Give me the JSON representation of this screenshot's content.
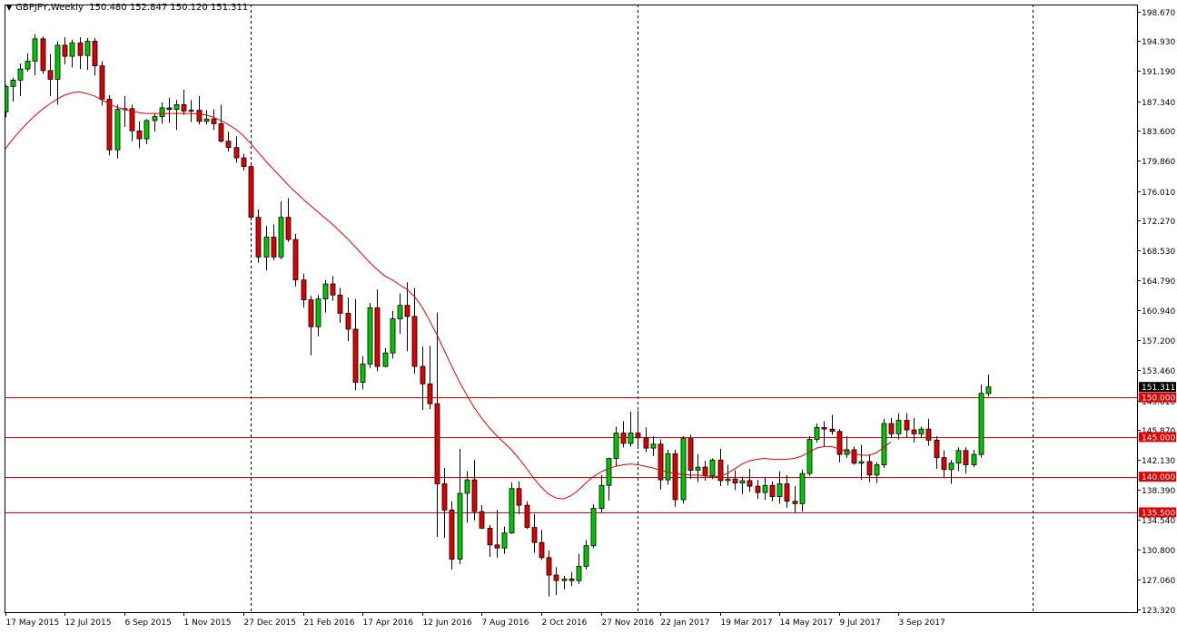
{
  "header": {
    "symbol_timeframe": "GBPJPY,Weekly",
    "ohlc": "150.480 152.847 150.120 151.311"
  },
  "colors": {
    "bull": "#00c800",
    "bear": "#e00000",
    "ma": "#e00000",
    "level_line": "#e00000",
    "price_tag_bg": "#e00000",
    "price_tag_text": "#ffffff",
    "current_tag_bg": "#000000",
    "axis": "#000000",
    "separator": "#000000"
  },
  "chart_data": {
    "type": "candlestick",
    "title": "GBPJPY,Weekly",
    "symbol": "GBPJPY",
    "timeframe": "Weekly",
    "current_price": 151.311,
    "current_price_label": "151.311",
    "ylim": [
      123.32,
      198.67
    ],
    "y_ticks": [
      "198.670",
      "194.930",
      "191.190",
      "187.340",
      "183.600",
      "179.860",
      "176.010",
      "172.270",
      "168.530",
      "164.790",
      "160.940",
      "157.200",
      "153.460",
      "149.610",
      "145.870",
      "142.130",
      "138.390",
      "134.540",
      "130.800",
      "127.060",
      "123.320"
    ],
    "x_labels": [
      {
        "label": "17 May 2015",
        "bar": 0
      },
      {
        "label": "12 Jul 2015",
        "bar": 8
      },
      {
        "label": "6 Sep 2015",
        "bar": 16
      },
      {
        "label": "1 Nov 2015",
        "bar": 24
      },
      {
        "label": "27 Dec 2015",
        "bar": 32
      },
      {
        "label": "21 Feb 2016",
        "bar": 40
      },
      {
        "label": "17 Apr 2016",
        "bar": 48
      },
      {
        "label": "12 Jun 2016",
        "bar": 56
      },
      {
        "label": "7 Aug 2016",
        "bar": 64
      },
      {
        "label": "2 Oct 2016",
        "bar": 72
      },
      {
        "label": "27 Nov 2016",
        "bar": 80
      },
      {
        "label": "22 Jan 2017",
        "bar": 88
      },
      {
        "label": "19 Mar 2017",
        "bar": 96
      },
      {
        "label": "14 May 2017",
        "bar": 104
      },
      {
        "label": "9 Jul 2017",
        "bar": 112
      },
      {
        "label": "3 Sep 2017",
        "bar": 120
      }
    ],
    "period_separators_bar": [
      33,
      85,
      138
    ],
    "horizontal_levels": [
      {
        "value": 150.0,
        "label": "150.000"
      },
      {
        "value": 145.0,
        "label": "145.000"
      },
      {
        "value": 140.0,
        "label": "140.000"
      },
      {
        "value": 135.5,
        "label": "135.500"
      }
    ],
    "ma": {
      "name": "Moving Average",
      "values": [
        181.3,
        182.5,
        183.6,
        184.6,
        185.5,
        186.3,
        187.0,
        187.6,
        188.1,
        188.4,
        188.5,
        188.3,
        188.0,
        187.5,
        187.0,
        186.6,
        186.3,
        186.1,
        185.9,
        185.8,
        185.8,
        185.8,
        185.8,
        185.8,
        185.8,
        185.8,
        185.7,
        185.6,
        185.3,
        184.9,
        184.4,
        183.8,
        183.0,
        182.0,
        180.9,
        179.8,
        178.8,
        177.8,
        176.8,
        175.9,
        175.0,
        174.2,
        173.4,
        172.6,
        171.8,
        170.9,
        170.0,
        169.0,
        168.0,
        167.0,
        166.1,
        165.3,
        164.8,
        164.2,
        163.6,
        162.7,
        161.4,
        159.7,
        157.9,
        155.9,
        153.9,
        152.0,
        150.3,
        148.7,
        147.4,
        146.2,
        145.2,
        144.3,
        143.4,
        142.3,
        141.1,
        139.8,
        138.7,
        137.8,
        137.3,
        137.2,
        137.6,
        138.3,
        139.2,
        140.0,
        140.6,
        141.0,
        141.3,
        141.5,
        141.6,
        141.5,
        141.3,
        141.1,
        140.8,
        140.6,
        140.4,
        140.3,
        140.2,
        140.2,
        140.1,
        140.0,
        140.0,
        140.4,
        141.0,
        141.6,
        142.0,
        142.2,
        142.3,
        142.2,
        142.2,
        142.2,
        142.3,
        142.6,
        143.1,
        143.6,
        143.8,
        143.8,
        143.5,
        143.2,
        142.9,
        142.7,
        142.7,
        143.0,
        143.7,
        144.4
      ]
    },
    "series": [
      {
        "name": "GBPJPY",
        "ohlc": [
          [
            186.0,
            189.4,
            185.3,
            189.2
          ],
          [
            189.2,
            190.3,
            187.3,
            190.0
          ],
          [
            190.0,
            192.1,
            188.0,
            191.4
          ],
          [
            191.4,
            193.4,
            191.1,
            192.4
          ],
          [
            192.4,
            195.8,
            190.6,
            195.2
          ],
          [
            195.2,
            195.5,
            190.8,
            191.2
          ],
          [
            191.2,
            193.3,
            188.0,
            190.1
          ],
          [
            190.1,
            194.9,
            186.9,
            194.4
          ],
          [
            194.4,
            195.4,
            192.0,
            193.0
          ],
          [
            193.0,
            195.1,
            191.6,
            194.7
          ],
          [
            194.7,
            195.4,
            191.4,
            193.1
          ],
          [
            193.1,
            195.3,
            191.3,
            194.9
          ],
          [
            194.9,
            195.3,
            190.6,
            191.8
          ],
          [
            191.8,
            192.4,
            186.8,
            187.6
          ],
          [
            187.6,
            188.1,
            180.5,
            181.2
          ],
          [
            181.2,
            186.9,
            180.1,
            186.3
          ],
          [
            186.3,
            188.0,
            184.1,
            186.4
          ],
          [
            186.4,
            186.9,
            182.3,
            183.6
          ],
          [
            183.6,
            184.8,
            181.4,
            182.6
          ],
          [
            182.6,
            185.1,
            181.9,
            184.9
          ],
          [
            184.9,
            185.8,
            183.5,
            185.4
          ],
          [
            185.4,
            187.2,
            184.5,
            186.5
          ],
          [
            186.5,
            187.8,
            184.6,
            186.3
          ],
          [
            186.3,
            187.5,
            183.7,
            186.9
          ],
          [
            186.9,
            188.8,
            185.6,
            186.1
          ],
          [
            186.1,
            187.5,
            184.7,
            186.2
          ],
          [
            186.2,
            188.0,
            184.4,
            184.8
          ],
          [
            184.8,
            186.2,
            184.4,
            185.1
          ],
          [
            185.1,
            186.3,
            183.7,
            184.5
          ],
          [
            184.5,
            186.9,
            182.1,
            182.3
          ],
          [
            182.3,
            183.5,
            181.0,
            181.5
          ],
          [
            181.5,
            182.9,
            179.6,
            180.2
          ],
          [
            180.2,
            180.7,
            178.6,
            179.1
          ],
          [
            179.1,
            179.6,
            172.3,
            172.7
          ],
          [
            172.7,
            173.7,
            167.0,
            167.7
          ],
          [
            167.7,
            171.6,
            166.0,
            170.2
          ],
          [
            170.2,
            171.8,
            167.3,
            167.7
          ],
          [
            167.7,
            174.7,
            167.4,
            172.7
          ],
          [
            172.7,
            175.1,
            169.6,
            169.9
          ],
          [
            169.9,
            170.6,
            164.0,
            164.8
          ],
          [
            164.8,
            165.6,
            161.3,
            162.3
          ],
          [
            162.3,
            162.8,
            155.3,
            158.9
          ],
          [
            158.9,
            162.9,
            157.7,
            162.4
          ],
          [
            162.4,
            164.8,
            160.7,
            164.3
          ],
          [
            164.3,
            165.3,
            162.2,
            162.9
          ],
          [
            162.9,
            163.8,
            159.4,
            160.6
          ],
          [
            160.6,
            162.6,
            157.1,
            158.6
          ],
          [
            158.6,
            162.4,
            150.9,
            151.9
          ],
          [
            151.9,
            155.2,
            151.0,
            154.2
          ],
          [
            154.2,
            161.9,
            153.7,
            161.3
          ],
          [
            161.3,
            163.6,
            153.3,
            153.9
          ],
          [
            153.9,
            156.2,
            153.8,
            155.6
          ],
          [
            155.6,
            160.9,
            154.9,
            159.9
          ],
          [
            159.9,
            163.1,
            158.0,
            161.6
          ],
          [
            161.6,
            164.5,
            155.8,
            160.2
          ],
          [
            160.2,
            163.8,
            153.0,
            153.9
          ],
          [
            153.9,
            156.4,
            148.4,
            151.7
          ],
          [
            151.7,
            156.5,
            148.5,
            149.2
          ],
          [
            149.2,
            160.7,
            132.4,
            139.1
          ],
          [
            139.1,
            141.1,
            132.3,
            135.8
          ],
          [
            135.8,
            136.9,
            128.3,
            129.6
          ],
          [
            129.6,
            143.5,
            129.0,
            137.9
          ],
          [
            137.9,
            140.7,
            134.2,
            139.6
          ],
          [
            139.6,
            142.1,
            134.5,
            135.6
          ],
          [
            135.6,
            136.4,
            133.4,
            133.5
          ],
          [
            133.5,
            133.9,
            129.9,
            131.4
          ],
          [
            131.4,
            135.8,
            129.8,
            131.0
          ],
          [
            131.0,
            133.7,
            130.3,
            132.9
          ],
          [
            132.9,
            139.3,
            132.8,
            138.5
          ],
          [
            138.5,
            139.4,
            135.3,
            136.4
          ],
          [
            136.4,
            136.9,
            133.4,
            133.6
          ],
          [
            133.6,
            135.3,
            130.4,
            131.7
          ],
          [
            131.7,
            133.3,
            129.5,
            129.8
          ],
          [
            129.8,
            130.7,
            124.9,
            127.6
          ],
          [
            127.6,
            128.6,
            125.1,
            126.9
          ],
          [
            126.9,
            127.5,
            125.8,
            127.1
          ],
          [
            127.1,
            128.0,
            126.2,
            126.9
          ],
          [
            126.9,
            130.3,
            126.5,
            128.7
          ],
          [
            128.7,
            132.0,
            128.3,
            131.3
          ],
          [
            131.3,
            136.5,
            131.0,
            136.0
          ],
          [
            136.0,
            140.2,
            135.5,
            138.9
          ],
          [
            138.9,
            142.4,
            137.0,
            142.3
          ],
          [
            142.3,
            146.3,
            141.3,
            145.5
          ],
          [
            145.5,
            147.0,
            143.7,
            144.2
          ],
          [
            144.2,
            148.2,
            143.8,
            145.5
          ],
          [
            145.5,
            148.3,
            143.5,
            144.9
          ],
          [
            144.9,
            146.2,
            143.1,
            143.6
          ],
          [
            143.6,
            145.1,
            142.6,
            144.1
          ],
          [
            144.1,
            144.7,
            138.4,
            139.6
          ],
          [
            139.6,
            143.4,
            139.0,
            142.9
          ],
          [
            142.9,
            143.4,
            136.2,
            137.1
          ],
          [
            137.1,
            145.1,
            136.6,
            144.8
          ],
          [
            144.8,
            145.3,
            139.7,
            140.8
          ],
          [
            140.8,
            142.8,
            139.3,
            141.2
          ],
          [
            141.2,
            142.0,
            139.5,
            140.1
          ],
          [
            140.1,
            142.3,
            139.7,
            142.1
          ],
          [
            142.1,
            143.5,
            138.8,
            139.5
          ],
          [
            139.5,
            141.5,
            138.9,
            139.7
          ],
          [
            139.7,
            140.8,
            138.3,
            139.2
          ],
          [
            139.2,
            140.0,
            137.8,
            139.5
          ],
          [
            139.5,
            141.0,
            138.1,
            138.8
          ],
          [
            138.8,
            139.6,
            137.2,
            138.0
          ],
          [
            138.0,
            139.9,
            137.1,
            138.9
          ],
          [
            138.9,
            139.4,
            136.9,
            137.5
          ],
          [
            137.5,
            140.7,
            136.6,
            139.1
          ],
          [
            139.1,
            140.2,
            136.1,
            136.9
          ],
          [
            136.9,
            138.8,
            135.4,
            136.6
          ],
          [
            136.6,
            140.9,
            135.6,
            140.4
          ],
          [
            140.4,
            145.1,
            140.1,
            144.7
          ],
          [
            144.7,
            146.7,
            144.3,
            146.2
          ],
          [
            146.2,
            147.0,
            143.8,
            146.0
          ],
          [
            146.0,
            147.8,
            145.3,
            145.7
          ],
          [
            145.7,
            146.0,
            141.8,
            142.8
          ],
          [
            142.8,
            145.1,
            142.4,
            143.4
          ],
          [
            143.4,
            143.8,
            141.5,
            141.7
          ],
          [
            141.7,
            144.0,
            139.6,
            141.9
          ],
          [
            141.9,
            142.8,
            139.3,
            140.2
          ],
          [
            140.2,
            141.8,
            139.2,
            141.5
          ],
          [
            141.5,
            147.3,
            141.1,
            146.7
          ],
          [
            146.7,
            147.4,
            144.9,
            145.4
          ],
          [
            145.4,
            148.0,
            144.7,
            147.1
          ],
          [
            147.1,
            148.0,
            144.9,
            145.9
          ],
          [
            145.9,
            147.4,
            144.3,
            145.4
          ],
          [
            145.4,
            146.3,
            144.9,
            146.0
          ],
          [
            146.0,
            147.3,
            143.9,
            144.6
          ],
          [
            144.6,
            145.1,
            141.0,
            142.4
          ],
          [
            142.4,
            143.3,
            139.8,
            140.9
          ],
          [
            140.9,
            142.1,
            139.1,
            141.7
          ],
          [
            141.7,
            143.7,
            140.7,
            143.3
          ],
          [
            143.3,
            143.7,
            140.4,
            141.5
          ],
          [
            141.5,
            143.4,
            141.2,
            142.8
          ],
          [
            142.8,
            151.6,
            142.4,
            150.5
          ],
          [
            150.48,
            152.847,
            150.12,
            151.311
          ]
        ]
      }
    ]
  }
}
